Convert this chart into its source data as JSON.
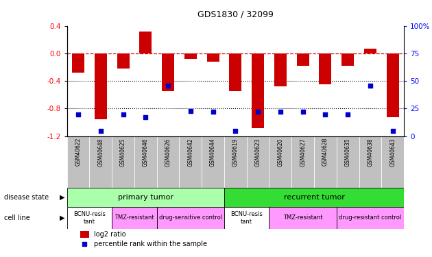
{
  "title": "GDS1830 / 32099",
  "samples": [
    "GSM40622",
    "GSM40648",
    "GSM40625",
    "GSM40646",
    "GSM40626",
    "GSM40642",
    "GSM40644",
    "GSM40619",
    "GSM40623",
    "GSM40620",
    "GSM40627",
    "GSM40628",
    "GSM40635",
    "GSM40638",
    "GSM40643"
  ],
  "log2_ratio": [
    -0.28,
    -0.95,
    -0.22,
    0.32,
    -0.55,
    -0.08,
    -0.12,
    -0.55,
    -1.08,
    -0.48,
    -0.18,
    -0.45,
    -0.18,
    0.07,
    -0.92
  ],
  "percentile": [
    20,
    5,
    20,
    17,
    46,
    23,
    22,
    5,
    22,
    22,
    22,
    20,
    20,
    46,
    5
  ],
  "ylim": [
    -1.2,
    0.4
  ],
  "y2lim": [
    0,
    100
  ],
  "yticks": [
    0.4,
    0.0,
    -0.4,
    -0.8,
    -1.2
  ],
  "y2ticks": [
    100,
    75,
    50,
    25,
    0
  ],
  "ds_groups": [
    {
      "label": "primary tumor",
      "start": 0,
      "end": 7,
      "color": "#AAFFAA"
    },
    {
      "label": "recurrent tumor",
      "start": 7,
      "end": 15,
      "color": "#33DD33"
    }
  ],
  "cl_groups": [
    {
      "label": "BCNU-resis\ntant",
      "start": 0,
      "end": 2,
      "color": "#FFFFFF"
    },
    {
      "label": "TMZ-resistant",
      "start": 2,
      "end": 4,
      "color": "#FF99FF"
    },
    {
      "label": "drug-sensitive control",
      "start": 4,
      "end": 7,
      "color": "#FF99FF"
    },
    {
      "label": "BCNU-resis\ntant",
      "start": 7,
      "end": 9,
      "color": "#FFFFFF"
    },
    {
      "label": "TMZ-resistant",
      "start": 9,
      "end": 12,
      "color": "#FF99FF"
    },
    {
      "label": "drug-resistant control",
      "start": 12,
      "end": 15,
      "color": "#FF99FF"
    }
  ],
  "bar_color": "#CC0000",
  "dot_color": "#0000CC",
  "ref_line_color": "#CC0000",
  "sample_bg_color": "#C0C0C0",
  "legend_bar_label": "log2 ratio",
  "legend_dot_label": "percentile rank within the sample",
  "disease_state_label": "disease state",
  "cell_line_label": "cell line"
}
